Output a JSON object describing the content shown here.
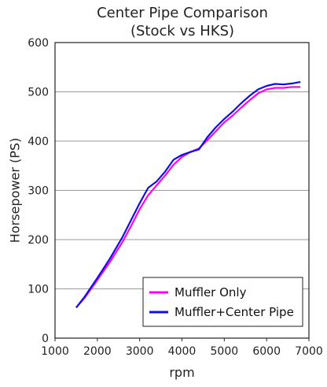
{
  "chart_data": {
    "type": "line",
    "title": [
      "Center Pipe Comparison",
      "(Stock vs HKS)"
    ],
    "xlabel": "rpm",
    "ylabel": "Horsepower (PS)",
    "xlim": [
      1000,
      7000
    ],
    "ylim": [
      0,
      600
    ],
    "x_ticks": [
      "1000",
      "2000",
      "3000",
      "4000",
      "5000",
      "6000",
      "7000"
    ],
    "y_ticks": [
      "0",
      "100",
      "200",
      "300",
      "400",
      "500",
      "600"
    ],
    "grid": "horizontal",
    "legend_position": "bottom-right",
    "series": [
      {
        "name": "Muffler Only",
        "color": "#ff00ff",
        "x": [
          1500,
          1700,
          2000,
          2300,
          2600,
          2800,
          3000,
          3200,
          3400,
          3600,
          3800,
          4000,
          4200,
          4400,
          4600,
          4800,
          5000,
          5200,
          5400,
          5600,
          5800,
          6000,
          6200,
          6400,
          6600,
          6800
        ],
        "y": [
          62,
          82,
          118,
          155,
          196,
          228,
          262,
          290,
          310,
          330,
          352,
          368,
          378,
          385,
          402,
          420,
          438,
          452,
          468,
          483,
          497,
          505,
          508,
          508,
          510,
          510
        ]
      },
      {
        "name": "Muffler+Center Pipe",
        "color": "#1010dd",
        "x": [
          1500,
          1700,
          2000,
          2300,
          2600,
          2800,
          3000,
          3200,
          3400,
          3600,
          3800,
          4000,
          4200,
          4400,
          4600,
          4800,
          5000,
          5200,
          5400,
          5600,
          5800,
          6000,
          6200,
          6400,
          6600,
          6800
        ],
        "y": [
          62,
          84,
          122,
          162,
          206,
          240,
          274,
          305,
          318,
          338,
          362,
          372,
          378,
          383,
          408,
          428,
          445,
          460,
          477,
          492,
          505,
          512,
          516,
          515,
          517,
          520
        ]
      }
    ]
  }
}
